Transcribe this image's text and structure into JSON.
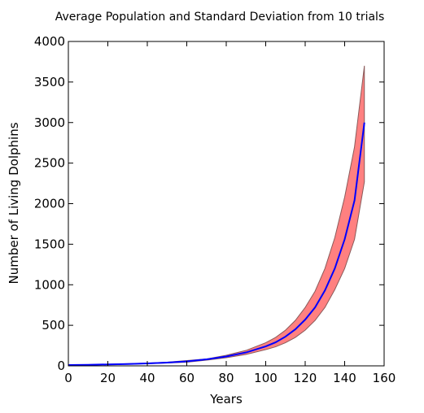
{
  "chart_data": {
    "type": "area",
    "title": "Average Population and Standard Deviation from 10 trials",
    "xlabel": "Years",
    "ylabel": "Number of Living Dolphins",
    "xlim": [
      0,
      160
    ],
    "ylim": [
      0,
      4000
    ],
    "xticks": [
      0,
      20,
      40,
      60,
      80,
      100,
      120,
      140,
      160
    ],
    "yticks": [
      0,
      500,
      1000,
      1500,
      2000,
      2500,
      3000,
      3500,
      4000
    ],
    "grid": false,
    "colors": {
      "mean_line": "#0000ff",
      "band_fill": "#ff8080",
      "band_edge": "#8a5a5a"
    },
    "series": [
      {
        "role": "mean",
        "x": [
          0,
          10,
          20,
          30,
          40,
          50,
          60,
          70,
          80,
          90,
          100,
          105,
          110,
          115,
          120,
          125,
          130,
          135,
          140,
          145,
          150
        ],
        "values": [
          10,
          13,
          18,
          23,
          30,
          40,
          55,
          80,
          115,
          165,
          240,
          290,
          360,
          450,
          570,
          720,
          930,
          1200,
          1560,
          2040,
          3000
        ]
      },
      {
        "role": "upper",
        "x": [
          0,
          10,
          20,
          30,
          40,
          50,
          60,
          70,
          80,
          90,
          100,
          105,
          110,
          115,
          120,
          125,
          130,
          135,
          140,
          145,
          150
        ],
        "values": [
          12,
          15,
          20,
          26,
          34,
          45,
          65,
          85,
          130,
          190,
          285,
          350,
          440,
          560,
          720,
          920,
          1200,
          1580,
          2080,
          2700,
          3700
        ]
      },
      {
        "role": "lower",
        "x": [
          0,
          10,
          20,
          30,
          40,
          50,
          60,
          70,
          80,
          90,
          100,
          105,
          110,
          115,
          120,
          125,
          130,
          135,
          140,
          145,
          150
        ],
        "values": [
          8,
          11,
          16,
          21,
          26,
          35,
          45,
          70,
          100,
          140,
          200,
          235,
          285,
          350,
          440,
          560,
          720,
          940,
          1200,
          1560,
          2270
        ]
      }
    ]
  }
}
